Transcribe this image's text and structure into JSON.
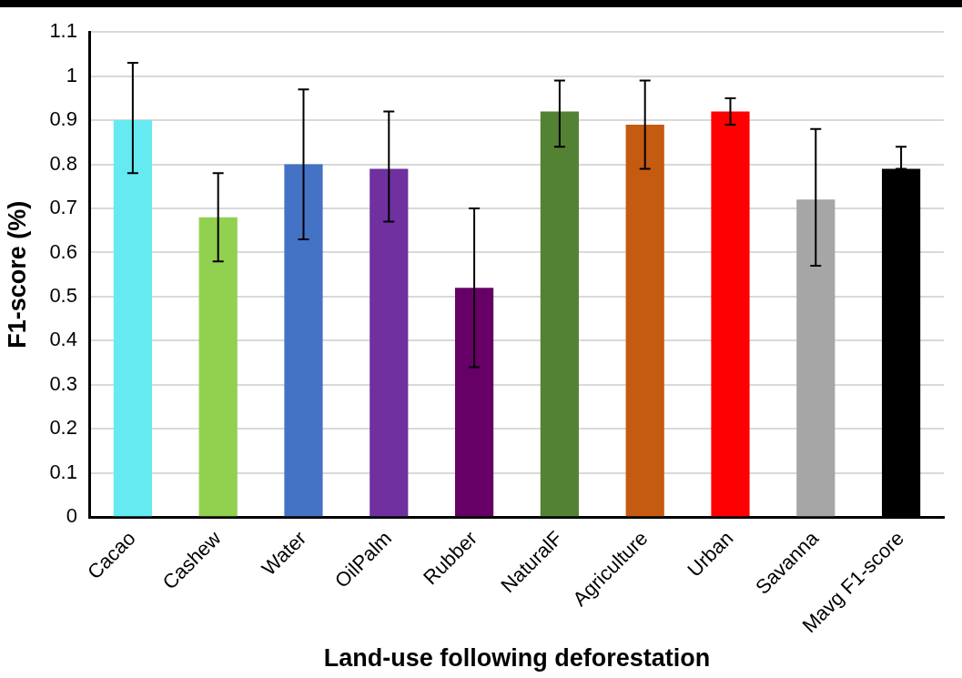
{
  "chart_data": {
    "type": "bar",
    "xlabel": "Land-use following deforestation",
    "ylabel": "F1-score (%)",
    "categories": [
      "Cacao",
      "Cashew",
      "Water",
      "OilPalm",
      "Rubber",
      "NaturalF",
      "Agriculture",
      "Urban",
      "Savanna",
      "Mavg F1-score"
    ],
    "values": [
      0.9,
      0.68,
      0.8,
      0.79,
      0.52,
      0.92,
      0.89,
      0.92,
      0.72,
      0.79
    ],
    "colors": [
      "#66eaf2",
      "#92d050",
      "#4472c4",
      "#7030a0",
      "#660066",
      "#548235",
      "#c55a11",
      "#ff0000",
      "#a6a6a6",
      "#000000"
    ],
    "errors": [
      [
        0.78,
        1.03
      ],
      [
        0.58,
        0.78
      ],
      [
        0.63,
        0.97
      ],
      [
        0.67,
        0.92
      ],
      [
        0.34,
        0.7
      ],
      [
        0.84,
        0.99
      ],
      [
        0.79,
        0.99
      ],
      [
        0.89,
        0.95
      ],
      [
        0.57,
        0.88
      ],
      [
        0.79,
        0.84
      ]
    ],
    "ylim": [
      0,
      1.1
    ],
    "yticks": [
      0,
      0.1,
      0.2,
      0.3,
      0.4,
      0.5,
      0.6,
      0.7,
      0.8,
      0.9,
      1,
      1.1
    ],
    "grid": "y",
    "legend": false
  }
}
